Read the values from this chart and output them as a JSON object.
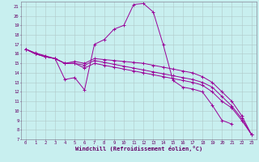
{
  "xlabel": "Windchill (Refroidissement éolien,°C)",
  "xlim": [
    -0.5,
    23.5
  ],
  "ylim": [
    7,
    21.5
  ],
  "xticks": [
    0,
    1,
    2,
    3,
    4,
    5,
    6,
    7,
    8,
    9,
    10,
    11,
    12,
    13,
    14,
    15,
    16,
    17,
    18,
    19,
    20,
    21,
    22,
    23
  ],
  "yticks": [
    7,
    8,
    9,
    10,
    11,
    12,
    13,
    14,
    15,
    16,
    17,
    18,
    19,
    20,
    21
  ],
  "bg_color": "#c8efef",
  "line_color": "#990099",
  "grid_color": "#b0c8c8",
  "curves": [
    {
      "x": [
        0,
        1,
        2,
        3,
        4,
        5,
        6,
        7,
        8,
        9,
        10,
        11,
        12,
        13,
        14,
        15,
        16,
        17,
        18,
        19,
        20,
        21
      ],
      "y": [
        16.5,
        16.1,
        15.8,
        15.5,
        13.3,
        13.5,
        12.2,
        17.0,
        17.5,
        18.6,
        19.0,
        21.2,
        21.3,
        20.4,
        17.0,
        13.2,
        12.5,
        12.3,
        12.0,
        10.6,
        9.0,
        8.6
      ]
    },
    {
      "x": [
        0,
        1,
        2,
        3,
        4,
        5,
        6,
        7,
        8,
        9,
        10,
        11,
        12,
        13,
        14,
        15,
        16,
        17,
        18,
        19,
        20,
        21,
        22,
        23
      ],
      "y": [
        16.5,
        16.0,
        15.7,
        15.5,
        15.0,
        15.2,
        15.0,
        15.5,
        15.4,
        15.3,
        15.2,
        15.1,
        15.0,
        14.8,
        14.6,
        14.4,
        14.2,
        14.0,
        13.6,
        13.0,
        12.0,
        11.0,
        9.5,
        7.5
      ]
    },
    {
      "x": [
        0,
        1,
        2,
        3,
        4,
        5,
        6,
        7,
        8,
        9,
        10,
        11,
        12,
        13,
        14,
        15,
        16,
        17,
        18,
        19,
        20,
        21,
        22,
        23
      ],
      "y": [
        16.5,
        16.0,
        15.7,
        15.5,
        15.0,
        15.0,
        14.8,
        15.3,
        15.1,
        14.9,
        14.7,
        14.5,
        14.3,
        14.1,
        13.9,
        13.7,
        13.5,
        13.3,
        13.0,
        12.5,
        11.5,
        10.5,
        9.2,
        7.5
      ]
    },
    {
      "x": [
        0,
        1,
        2,
        3,
        4,
        5,
        6,
        7,
        8,
        9,
        10,
        11,
        12,
        13,
        14,
        15,
        16,
        17,
        18,
        19,
        20,
        21,
        22,
        23
      ],
      "y": [
        16.5,
        16.0,
        15.7,
        15.5,
        15.0,
        15.0,
        14.5,
        15.0,
        14.8,
        14.6,
        14.4,
        14.2,
        14.0,
        13.8,
        13.6,
        13.4,
        13.2,
        13.0,
        12.7,
        12.0,
        11.0,
        10.3,
        9.0,
        7.5
      ]
    }
  ]
}
